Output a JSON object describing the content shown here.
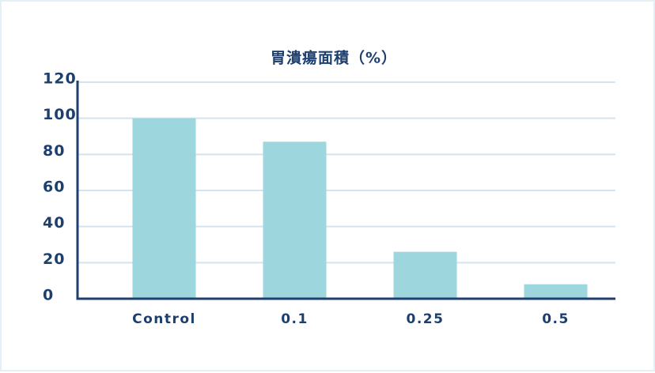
{
  "chart_data": {
    "type": "bar",
    "title": "胃潰瘍面積（%）",
    "categories": [
      "Control",
      "0.1",
      "0.25",
      "0.5"
    ],
    "values": [
      100,
      87,
      26,
      8
    ],
    "color": "#9dd6dc",
    "ylim": [
      0,
      120
    ],
    "yticks": [
      0,
      20,
      40,
      60,
      80,
      100,
      120
    ],
    "grid": true
  }
}
